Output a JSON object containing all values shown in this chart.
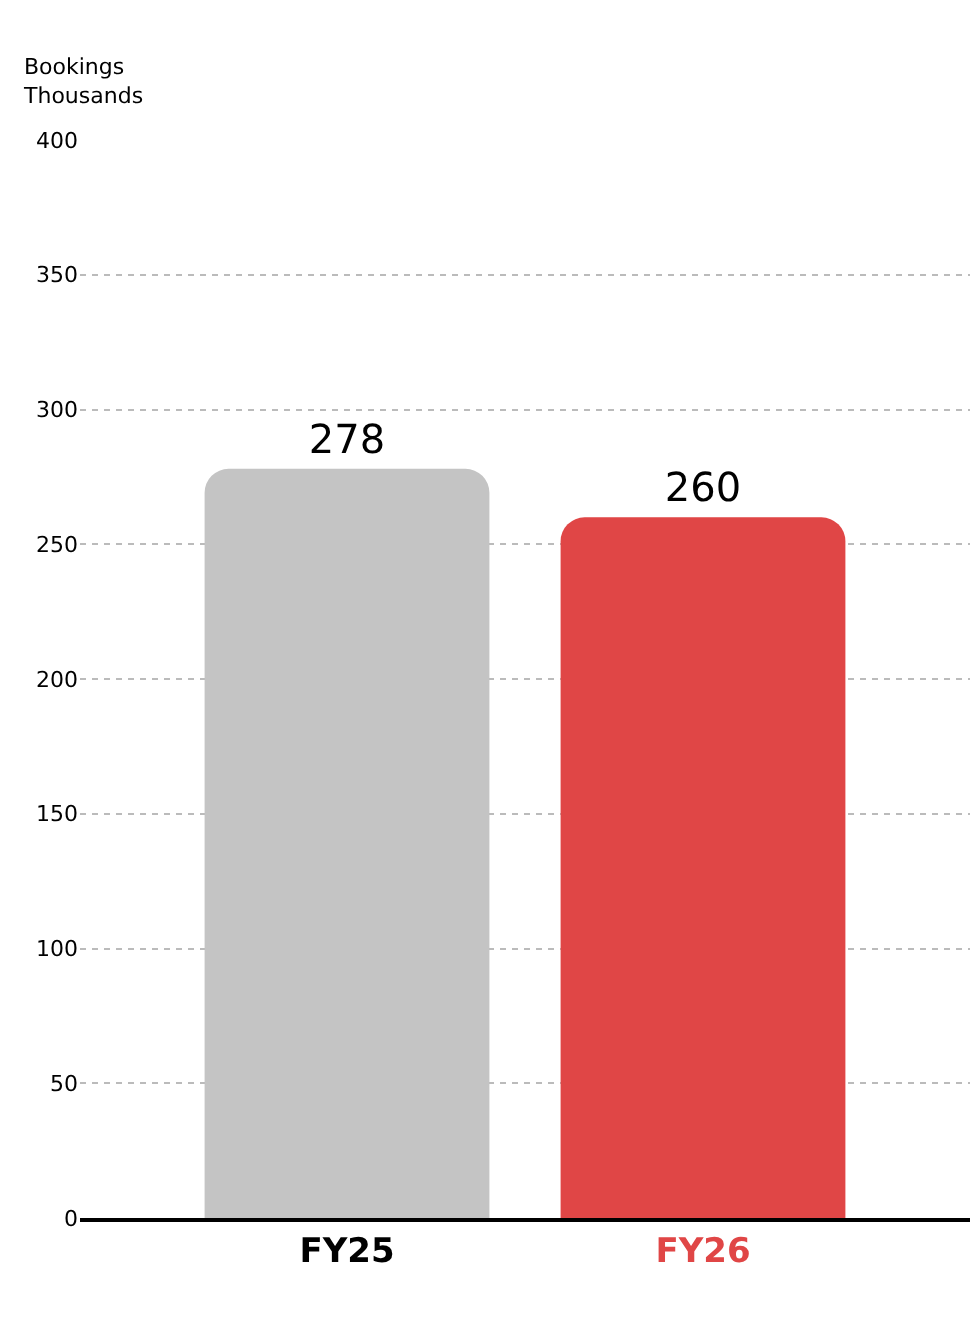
{
  "chart_data": {
    "type": "bar",
    "ylabel": "Bookings\nThousands",
    "categories": [
      "FY25",
      "FY26"
    ],
    "values": [
      278,
      260
    ],
    "colors": [
      "#c4c4c4",
      "#e04646"
    ],
    "ylim": [
      0,
      400
    ],
    "yticks": [
      0,
      50,
      100,
      150,
      200,
      250,
      300,
      350,
      400
    ],
    "grid": "y",
    "data_labels": true
  }
}
